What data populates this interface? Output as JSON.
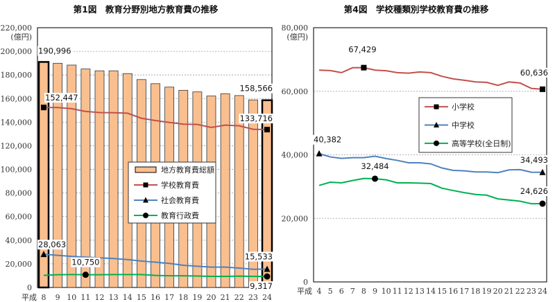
{
  "chart_data": [
    {
      "type": "bar+line",
      "title": "第1図　教育分野別地方教育費の推移",
      "ylabel": "(億円)",
      "xlabel_prefix": "平成",
      "ylim": [
        0,
        220000
      ],
      "yticks": [
        "0",
        "20,000",
        "40,000",
        "60,000",
        "80,000",
        "100,000",
        "120,000",
        "140,000",
        "160,000",
        "180,000",
        "200,000",
        "220,000"
      ],
      "grid": true,
      "legend_position": "center",
      "categories": [
        "8",
        "9",
        "10",
        "11",
        "12",
        "13",
        "14",
        "15",
        "16",
        "17",
        "18",
        "19",
        "20",
        "21",
        "22",
        "23",
        "24"
      ],
      "series": [
        {
          "name": "地方教育費総額",
          "kind": "bar",
          "color": "#f9bf8f",
          "values": [
            190996,
            189900,
            188350,
            185050,
            183500,
            183500,
            181150,
            176100,
            172600,
            169700,
            167000,
            165650,
            162150,
            164100,
            162550,
            158850,
            158566
          ]
        },
        {
          "name": "学校教育費",
          "kind": "line",
          "marker": "square",
          "color": "#c0504d",
          "values": [
            152447,
            152400,
            151450,
            149100,
            148150,
            148000,
            147600,
            143300,
            141400,
            139800,
            138300,
            138100,
            135500,
            137500,
            136900,
            134000,
            133716
          ]
        },
        {
          "name": "社会教育費",
          "kind": "line",
          "marker": "triangle",
          "color": "#4f81bd",
          "values": [
            28063,
            27200,
            26300,
            25700,
            25100,
            24500,
            23600,
            22400,
            21400,
            20400,
            18800,
            18000,
            17200,
            17200,
            16400,
            15400,
            15533
          ]
        },
        {
          "name": "教育行政費",
          "kind": "line",
          "marker": "circle",
          "color": "#00b050",
          "values": [
            10300,
            10800,
            10900,
            10750,
            10800,
            10900,
            10900,
            10900,
            10200,
            9900,
            9900,
            9700,
            9400,
            9400,
            9600,
            9400,
            9317
          ]
        }
      ],
      "data_labels": [
        {
          "series": 0,
          "index": 0,
          "text": "190,996"
        },
        {
          "series": 0,
          "index": 16,
          "text": "158,566"
        },
        {
          "series": 1,
          "index": 0,
          "text": "152,447"
        },
        {
          "series": 1,
          "index": 16,
          "text": "133,716"
        },
        {
          "series": 2,
          "index": 0,
          "text": "28,063"
        },
        {
          "series": 2,
          "index": 16,
          "text": "15,533"
        },
        {
          "series": 3,
          "index": 3,
          "text": "10,750"
        },
        {
          "series": 3,
          "index": 16,
          "text": "9,317"
        }
      ]
    },
    {
      "type": "line",
      "title": "第4図　学校種類別学校教育費の推移",
      "ylabel": "(億円)",
      "xlabel_prefix": "平成",
      "ylim": [
        0,
        80000
      ],
      "yticks": [
        "0",
        "20,000",
        "40,000",
        "60,000",
        "80,000"
      ],
      "grid": true,
      "legend_position": "center-right",
      "categories": [
        "4",
        "5",
        "6",
        "7",
        "8",
        "9",
        "10",
        "11",
        "12",
        "13",
        "14",
        "15",
        "16",
        "17",
        "18",
        "19",
        "20",
        "21",
        "22",
        "23",
        "24"
      ],
      "series": [
        {
          "name": "小学校",
          "marker": "square",
          "color": "#c0504d",
          "values": [
            66660,
            66500,
            65860,
            67400,
            67429,
            66660,
            66450,
            65860,
            65700,
            66080,
            65860,
            64700,
            63900,
            63450,
            62940,
            62800,
            61850,
            62940,
            62580,
            60900,
            60636
          ]
        },
        {
          "name": "中学校",
          "marker": "triangle",
          "color": "#4f81bd",
          "values": [
            40382,
            39330,
            38890,
            39100,
            39100,
            39550,
            38820,
            38240,
            37500,
            37500,
            37150,
            35850,
            35100,
            34970,
            34600,
            34600,
            34380,
            35250,
            35330,
            34530,
            34493
          ]
        },
        {
          "name": "高等学校(全日制)",
          "marker": "circle",
          "color": "#00b050",
          "values": [
            30360,
            31380,
            31170,
            31900,
            32550,
            32484,
            32120,
            31170,
            31170,
            31100,
            30950,
            29490,
            28760,
            28100,
            27520,
            27300,
            26130,
            25770,
            25400,
            24600,
            24626
          ]
        }
      ],
      "data_labels": [
        {
          "series": 0,
          "index": 4,
          "text": "67,429"
        },
        {
          "series": 0,
          "index": 20,
          "text": "60,636"
        },
        {
          "series": 1,
          "index": 0,
          "text": "40,382"
        },
        {
          "series": 1,
          "index": 20,
          "text": "34,493"
        },
        {
          "series": 2,
          "index": 5,
          "text": "32,484"
        },
        {
          "series": 2,
          "index": 20,
          "text": "24,626"
        }
      ]
    }
  ]
}
